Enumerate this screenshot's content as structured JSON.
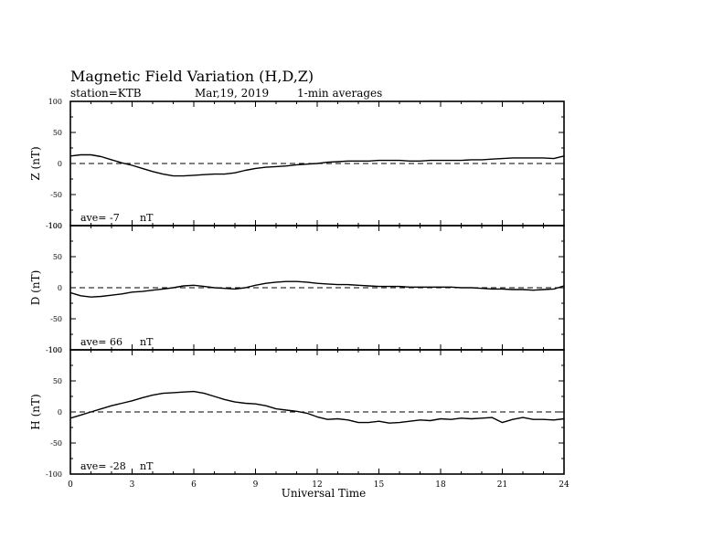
{
  "header": {
    "title": "Magnetic Field Variation (H,D,Z)",
    "station": "station=KTB",
    "date": "Mar,19, 2019",
    "averaging": "1-min averages"
  },
  "chart_data": [
    {
      "type": "line",
      "panel": "Z",
      "ylabel": "Z (nT)",
      "ylim": [
        -100,
        100
      ],
      "yticks": [
        "100",
        "50",
        "0",
        "-50",
        "-100"
      ],
      "xlim": [
        0,
        24
      ],
      "ave_label": "ave= -7",
      "ave_unit": "nT",
      "baseline": 0,
      "series": [
        {
          "x": [
            0,
            0.5,
            1,
            1.5,
            2,
            2.5,
            3,
            3.5,
            4,
            4.5,
            5,
            5.5,
            6,
            6.5,
            7,
            7.5,
            8,
            8.5,
            9,
            9.5,
            10,
            10.5,
            11,
            11.5,
            12,
            12.5,
            13,
            13.5,
            14,
            14.5,
            15,
            15.5,
            16,
            16.5,
            17,
            17.5,
            18,
            18.5,
            19,
            19.5,
            20,
            20.5,
            21,
            21.5,
            22,
            22.5,
            23,
            23.5,
            24
          ],
          "values": [
            12,
            14,
            14,
            11,
            6,
            1,
            -3,
            -8,
            -13,
            -17,
            -20,
            -20,
            -19,
            -18,
            -17,
            -17,
            -15,
            -11,
            -8,
            -6,
            -5,
            -4,
            -2,
            -1,
            0,
            2,
            3,
            4,
            4,
            4,
            5,
            5,
            5,
            4,
            4,
            5,
            5,
            5,
            5,
            6,
            6,
            7,
            8,
            9,
            9,
            9,
            9,
            8,
            12
          ]
        }
      ]
    },
    {
      "type": "line",
      "panel": "D",
      "ylabel": "D (nT)",
      "ylim": [
        -100,
        100
      ],
      "yticks": [
        "100",
        "50",
        "0",
        "-50",
        "-100"
      ],
      "xlim": [
        0,
        24
      ],
      "ave_label": "ave= 66",
      "ave_unit": "nT",
      "baseline": 0,
      "series": [
        {
          "x": [
            0,
            0.5,
            1,
            1.5,
            2,
            2.5,
            3,
            3.5,
            4,
            4.5,
            5,
            5.5,
            6,
            6.5,
            7,
            7.5,
            8,
            8.5,
            9,
            9.5,
            10,
            10.5,
            11,
            11.5,
            12,
            12.5,
            13,
            13.5,
            14,
            14.5,
            15,
            15.5,
            16,
            16.5,
            17,
            17.5,
            18,
            18.5,
            19,
            19.5,
            20,
            20.5,
            21,
            21.5,
            22,
            22.5,
            23,
            23.5,
            24
          ],
          "values": [
            -8,
            -13,
            -15,
            -14,
            -12,
            -10,
            -7,
            -6,
            -4,
            -2,
            0,
            3,
            4,
            2,
            0,
            -1,
            -2,
            0,
            4,
            7,
            9,
            10,
            10,
            9,
            7,
            6,
            5,
            5,
            4,
            3,
            2,
            2,
            2,
            1,
            1,
            1,
            1,
            1,
            0,
            0,
            -1,
            -2,
            -2,
            -3,
            -3,
            -4,
            -3,
            -2,
            3
          ]
        }
      ]
    },
    {
      "type": "line",
      "panel": "H",
      "ylabel": "H (nT)",
      "ylim": [
        -100,
        100
      ],
      "yticks": [
        "100",
        "50",
        "0",
        "-50",
        "-100"
      ],
      "xlim": [
        0,
        24
      ],
      "xlabel": "Universal Time",
      "xticks": [
        "0",
        "3",
        "6",
        "9",
        "12",
        "15",
        "18",
        "21",
        "24"
      ],
      "ave_label": "ave= -28",
      "ave_unit": "nT",
      "baseline": 0,
      "series": [
        {
          "x": [
            0,
            0.5,
            1,
            1.5,
            2,
            2.5,
            3,
            3.5,
            4,
            4.5,
            5,
            5.5,
            6,
            6.5,
            7,
            7.5,
            8,
            8.5,
            9,
            9.5,
            10,
            10.5,
            11,
            11.5,
            12,
            12.5,
            13,
            13.5,
            14,
            14.5,
            15,
            15.5,
            16,
            16.5,
            17,
            17.5,
            18,
            18.5,
            19,
            19.5,
            20,
            20.5,
            21,
            21.5,
            22,
            22.5,
            23,
            23.5,
            24
          ],
          "values": [
            -10,
            -5,
            0,
            5,
            10,
            14,
            18,
            23,
            27,
            30,
            31,
            32,
            33,
            30,
            25,
            20,
            16,
            14,
            13,
            10,
            5,
            3,
            1,
            -2,
            -8,
            -12,
            -11,
            -13,
            -17,
            -17,
            -15,
            -18,
            -17,
            -15,
            -13,
            -14,
            -11,
            -12,
            -10,
            -11,
            -10,
            -9,
            -17,
            -12,
            -9,
            -12,
            -12,
            -13,
            -11
          ]
        }
      ]
    }
  ]
}
